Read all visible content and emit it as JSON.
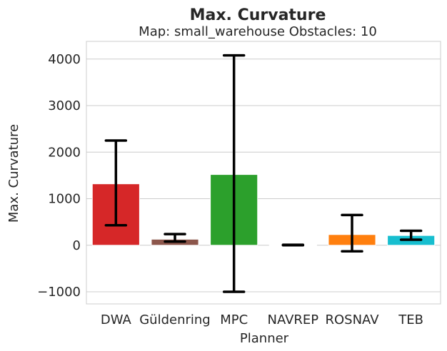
{
  "chart_data": {
    "type": "bar",
    "title": "Max. Curvature",
    "subtitle": "Map: small_warehouse Obstacles: 10",
    "xlabel": "Planner",
    "ylabel": "Max. Curvature",
    "categories": [
      "DWA",
      "Güldenring",
      "MPC",
      "NAVREP",
      "ROSNAV",
      "TEB"
    ],
    "values": [
      1320,
      130,
      1520,
      5,
      230,
      210
    ],
    "error_low": [
      430,
      80,
      -1000,
      0,
      -130,
      120
    ],
    "error_high": [
      2250,
      240,
      4080,
      10,
      650,
      310
    ],
    "colors": [
      "#d62728",
      "#8c564b",
      "#2ca02c",
      "#dddddd",
      "#ff7f0e",
      "#17becf"
    ],
    "yticks": [
      -1000,
      0,
      1000,
      2000,
      3000,
      4000
    ],
    "ytick_labels": [
      "−1000",
      "0",
      "1000",
      "2000",
      "3000",
      "4000"
    ],
    "ylim": [
      -1260,
      4380
    ],
    "grid": true
  }
}
